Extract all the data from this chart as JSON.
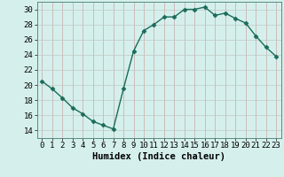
{
  "x": [
    0,
    1,
    2,
    3,
    4,
    5,
    6,
    7,
    8,
    9,
    10,
    11,
    12,
    13,
    14,
    15,
    16,
    17,
    18,
    19,
    20,
    21,
    22,
    23
  ],
  "y": [
    20.5,
    19.5,
    18.3,
    17.0,
    16.2,
    15.2,
    14.7,
    14.2,
    19.5,
    24.5,
    27.2,
    28.0,
    29.0,
    29.0,
    30.0,
    30.0,
    30.3,
    29.2,
    29.5,
    28.8,
    28.2,
    26.5,
    25.0,
    23.8
  ],
  "line_color": "#1a6b5a",
  "marker": "D",
  "marker_size": 2.5,
  "bg_color": "#d5f0ec",
  "grid_color_v": "#c8a8a8",
  "grid_color_h": "#c0c8c4",
  "xlabel": "Humidex (Indice chaleur)",
  "xlim": [
    -0.5,
    23.5
  ],
  "ylim": [
    13.0,
    31.0
  ],
  "yticks": [
    14,
    16,
    18,
    20,
    22,
    24,
    26,
    28,
    30
  ],
  "xticks": [
    0,
    1,
    2,
    3,
    4,
    5,
    6,
    7,
    8,
    9,
    10,
    11,
    12,
    13,
    14,
    15,
    16,
    17,
    18,
    19,
    20,
    21,
    22,
    23
  ],
  "xlabel_fontsize": 7.5,
  "tick_fontsize": 6.5,
  "line_width": 1.0
}
